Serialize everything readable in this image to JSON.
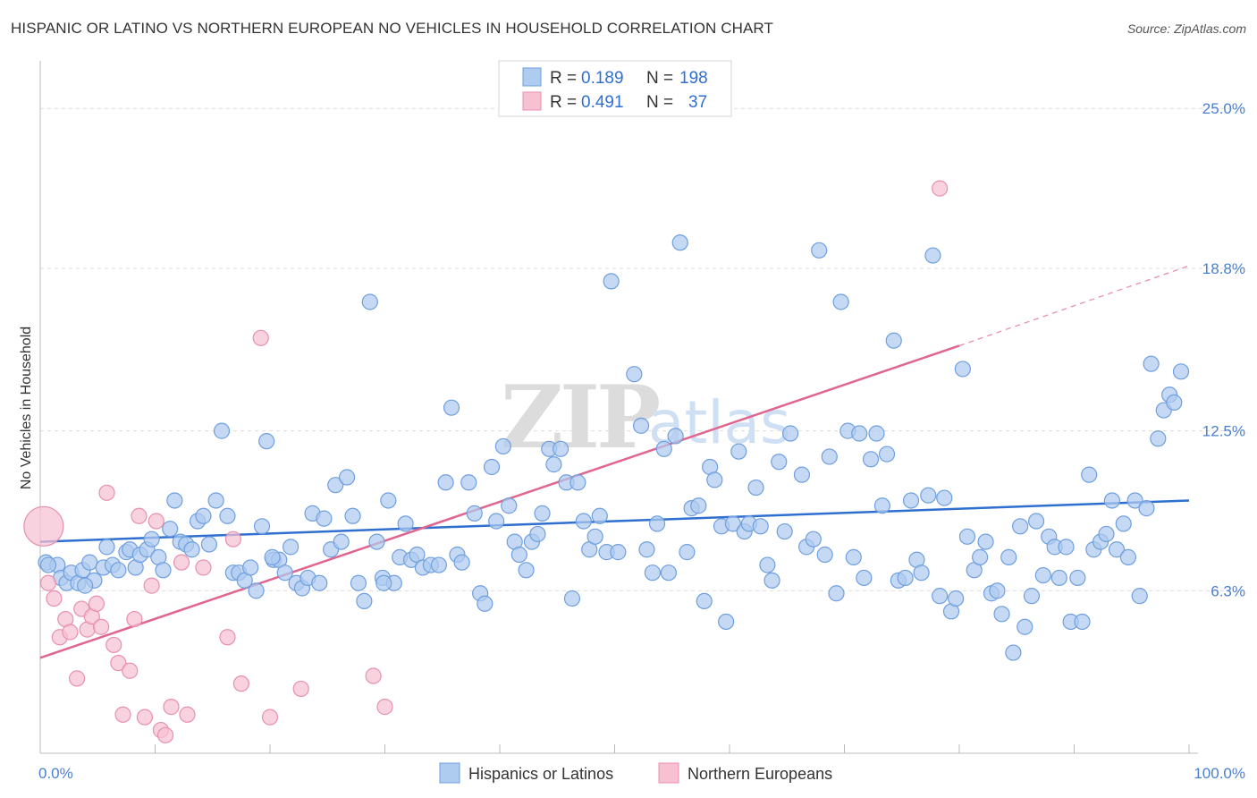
{
  "title": "HISPANIC OR LATINO VS NORTHERN EUROPEAN NO VEHICLES IN HOUSEHOLD CORRELATION CHART",
  "source": "Source: ZipAtlas.com",
  "watermark": "ZIPatlas",
  "colors": {
    "blue_fill": "#aecbf0",
    "blue_stroke": "#6f9fdf",
    "blue_line": "#2f6fd0",
    "pink_fill": "#f7c1d2",
    "pink_stroke": "#e890ad",
    "pink_line": "#e0658f",
    "tick_text": "#4a7fd1",
    "grid": "#dddddd"
  },
  "legend": {
    "rows": [
      {
        "r_label": "R =",
        "r_value": "0.189",
        "n_label": "N =",
        "n_value": "198"
      },
      {
        "r_label": "R =",
        "r_value": "0.491",
        "n_label": "N =",
        "n_value": "37"
      }
    ]
  },
  "chart_data": {
    "type": "scatter",
    "title": "HISPANIC OR LATINO VS NORTHERN EUROPEAN NO VEHICLES IN HOUSEHOLD CORRELATION CHART",
    "xlabel": "",
    "ylabel": "No Vehicles in Household",
    "xlim": [
      0,
      100
    ],
    "ylim": [
      0,
      26.5
    ],
    "x_tick_labels": [
      "0.0%",
      "100.0%"
    ],
    "y_ticks": [
      6.3,
      12.5,
      18.8,
      25.0
    ],
    "y_tick_labels": [
      "6.3%",
      "12.5%",
      "18.8%",
      "25.0%"
    ],
    "grid": "horizontal dashed",
    "legend_placement": "top-center",
    "series": [
      {
        "name": "Hispanics or Latinos",
        "r": 0.189,
        "n": 198,
        "trend": {
          "x0": 0,
          "y0": 8.2,
          "x1": 100,
          "y1": 9.8
        },
        "points": [
          [
            0.5,
            7.4
          ],
          [
            1.5,
            7.3
          ],
          [
            1.8,
            6.8
          ],
          [
            2.3,
            6.6
          ],
          [
            2.7,
            7.0
          ],
          [
            3.3,
            6.6
          ],
          [
            3.7,
            7.1
          ],
          [
            4.3,
            7.4
          ],
          [
            4.7,
            6.7
          ],
          [
            5.5,
            7.2
          ],
          [
            5.8,
            8.0
          ],
          [
            6.3,
            7.3
          ],
          [
            6.8,
            7.1
          ],
          [
            7.5,
            7.8
          ],
          [
            7.8,
            7.9
          ],
          [
            8.3,
            7.2
          ],
          [
            8.7,
            7.7
          ],
          [
            9.3,
            7.9
          ],
          [
            9.7,
            8.3
          ],
          [
            10.3,
            7.6
          ],
          [
            10.7,
            7.1
          ],
          [
            11.3,
            8.7
          ],
          [
            11.7,
            9.8
          ],
          [
            12.2,
            8.2
          ],
          [
            12.7,
            8.1
          ],
          [
            13.2,
            7.9
          ],
          [
            13.7,
            9.0
          ],
          [
            14.2,
            9.2
          ],
          [
            14.7,
            8.1
          ],
          [
            15.3,
            9.8
          ],
          [
            15.8,
            12.5
          ],
          [
            16.3,
            9.2
          ],
          [
            16.8,
            7.0
          ],
          [
            17.3,
            7.0
          ],
          [
            17.8,
            6.7
          ],
          [
            18.3,
            7.2
          ],
          [
            18.8,
            6.3
          ],
          [
            19.3,
            8.8
          ],
          [
            19.7,
            12.1
          ],
          [
            20.3,
            7.5
          ],
          [
            20.8,
            7.5
          ],
          [
            21.3,
            7.0
          ],
          [
            21.8,
            8.0
          ],
          [
            22.3,
            6.6
          ],
          [
            22.8,
            6.4
          ],
          [
            23.3,
            6.8
          ],
          [
            23.7,
            9.3
          ],
          [
            24.3,
            6.6
          ],
          [
            24.7,
            9.1
          ],
          [
            25.3,
            7.9
          ],
          [
            25.7,
            10.4
          ],
          [
            26.2,
            8.2
          ],
          [
            26.7,
            10.7
          ],
          [
            27.2,
            9.2
          ],
          [
            27.7,
            6.6
          ],
          [
            28.2,
            5.9
          ],
          [
            28.7,
            17.5
          ],
          [
            29.3,
            8.2
          ],
          [
            29.8,
            6.8
          ],
          [
            30.3,
            9.8
          ],
          [
            30.8,
            6.6
          ],
          [
            31.3,
            7.6
          ],
          [
            31.8,
            8.9
          ],
          [
            32.3,
            7.5
          ],
          [
            32.8,
            7.7
          ],
          [
            33.3,
            7.2
          ],
          [
            34.0,
            7.3
          ],
          [
            34.7,
            7.3
          ],
          [
            35.3,
            10.5
          ],
          [
            35.8,
            13.4
          ],
          [
            36.3,
            7.7
          ],
          [
            36.7,
            7.4
          ],
          [
            37.3,
            10.5
          ],
          [
            37.8,
            9.3
          ],
          [
            38.3,
            6.2
          ],
          [
            38.7,
            5.8
          ],
          [
            39.3,
            11.1
          ],
          [
            39.7,
            9.0
          ],
          [
            40.3,
            11.9
          ],
          [
            40.8,
            9.6
          ],
          [
            41.3,
            8.2
          ],
          [
            41.7,
            7.7
          ],
          [
            42.3,
            7.1
          ],
          [
            42.8,
            8.2
          ],
          [
            43.3,
            8.5
          ],
          [
            43.7,
            9.3
          ],
          [
            44.3,
            11.8
          ],
          [
            44.7,
            11.2
          ],
          [
            45.3,
            11.8
          ],
          [
            45.8,
            10.5
          ],
          [
            46.3,
            6.0
          ],
          [
            46.8,
            10.5
          ],
          [
            47.3,
            9.0
          ],
          [
            47.8,
            7.9
          ],
          [
            48.3,
            8.4
          ],
          [
            48.7,
            9.2
          ],
          [
            49.3,
            7.8
          ],
          [
            49.7,
            18.3
          ],
          [
            50.3,
            7.8
          ],
          [
            51.7,
            14.7
          ],
          [
            52.3,
            12.7
          ],
          [
            52.8,
            7.9
          ],
          [
            53.3,
            7.0
          ],
          [
            53.7,
            8.9
          ],
          [
            54.3,
            11.8
          ],
          [
            54.7,
            7.0
          ],
          [
            55.3,
            12.3
          ],
          [
            55.7,
            19.8
          ],
          [
            56.3,
            7.8
          ],
          [
            56.7,
            9.5
          ],
          [
            57.3,
            9.6
          ],
          [
            57.8,
            5.9
          ],
          [
            58.3,
            11.1
          ],
          [
            58.7,
            10.6
          ],
          [
            59.3,
            8.8
          ],
          [
            59.7,
            5.1
          ],
          [
            60.3,
            8.9
          ],
          [
            60.8,
            11.7
          ],
          [
            61.3,
            8.6
          ],
          [
            61.7,
            8.9
          ],
          [
            62.3,
            10.3
          ],
          [
            62.7,
            8.8
          ],
          [
            63.3,
            7.3
          ],
          [
            63.7,
            6.7
          ],
          [
            64.3,
            11.3
          ],
          [
            64.8,
            8.6
          ],
          [
            65.3,
            12.4
          ],
          [
            66.3,
            10.8
          ],
          [
            66.7,
            8.0
          ],
          [
            67.3,
            8.3
          ],
          [
            67.8,
            19.5
          ],
          [
            68.3,
            7.7
          ],
          [
            68.7,
            11.5
          ],
          [
            69.3,
            6.2
          ],
          [
            69.7,
            17.5
          ],
          [
            70.3,
            12.5
          ],
          [
            70.8,
            7.6
          ],
          [
            71.3,
            12.4
          ],
          [
            71.7,
            6.8
          ],
          [
            72.3,
            11.4
          ],
          [
            72.8,
            12.4
          ],
          [
            73.3,
            9.6
          ],
          [
            73.7,
            11.6
          ],
          [
            74.3,
            16.0
          ],
          [
            74.7,
            6.7
          ],
          [
            75.3,
            6.8
          ],
          [
            75.8,
            9.8
          ],
          [
            76.3,
            7.5
          ],
          [
            76.7,
            7.0
          ],
          [
            77.3,
            10.0
          ],
          [
            77.7,
            19.3
          ],
          [
            78.3,
            6.1
          ],
          [
            78.7,
            9.9
          ],
          [
            79.3,
            5.5
          ],
          [
            79.7,
            6.0
          ],
          [
            80.3,
            14.9
          ],
          [
            80.7,
            8.4
          ],
          [
            81.3,
            7.1
          ],
          [
            81.8,
            7.6
          ],
          [
            82.3,
            8.2
          ],
          [
            82.8,
            6.2
          ],
          [
            83.3,
            6.3
          ],
          [
            83.7,
            5.4
          ],
          [
            84.3,
            7.6
          ],
          [
            84.7,
            3.9
          ],
          [
            85.3,
            8.8
          ],
          [
            85.7,
            4.9
          ],
          [
            86.3,
            6.1
          ],
          [
            86.7,
            9.0
          ],
          [
            87.3,
            6.9
          ],
          [
            87.8,
            8.4
          ],
          [
            88.3,
            8.0
          ],
          [
            88.7,
            6.8
          ],
          [
            89.3,
            8.0
          ],
          [
            89.7,
            5.1
          ],
          [
            90.3,
            6.8
          ],
          [
            90.7,
            5.1
          ],
          [
            91.3,
            10.8
          ],
          [
            91.7,
            7.9
          ],
          [
            92.3,
            8.2
          ],
          [
            92.8,
            8.5
          ],
          [
            93.3,
            9.8
          ],
          [
            93.7,
            7.9
          ],
          [
            94.3,
            8.9
          ],
          [
            94.7,
            7.6
          ],
          [
            95.3,
            9.8
          ],
          [
            95.7,
            6.1
          ],
          [
            96.3,
            9.5
          ],
          [
            96.7,
            15.1
          ],
          [
            97.3,
            12.2
          ],
          [
            97.8,
            13.3
          ],
          [
            98.3,
            13.9
          ],
          [
            98.7,
            13.6
          ],
          [
            99.3,
            14.8
          ],
          [
            0.7,
            7.3
          ],
          [
            3.9,
            6.5
          ],
          [
            20.2,
            7.6
          ],
          [
            29.9,
            6.6
          ]
        ]
      },
      {
        "name": "Northern Europeans",
        "r": 0.491,
        "n": 37,
        "trend": {
          "x0": 0,
          "y0": 3.7,
          "x1": 80,
          "y1": 15.8
        },
        "trend_dashed_extension": {
          "x0": 80,
          "y0": 15.8,
          "x1": 100,
          "y1": 18.9
        },
        "points": [
          [
            0.3,
            8.8
          ],
          [
            0.7,
            6.6
          ],
          [
            1.2,
            6.0
          ],
          [
            1.7,
            4.5
          ],
          [
            2.2,
            5.2
          ],
          [
            2.6,
            4.7
          ],
          [
            3.2,
            2.9
          ],
          [
            3.6,
            5.6
          ],
          [
            4.1,
            4.8
          ],
          [
            4.5,
            5.3
          ],
          [
            4.9,
            5.8
          ],
          [
            5.3,
            4.9
          ],
          [
            5.8,
            10.1
          ],
          [
            6.4,
            4.2
          ],
          [
            6.8,
            3.5
          ],
          [
            7.2,
            1.5
          ],
          [
            7.8,
            3.2
          ],
          [
            8.2,
            5.2
          ],
          [
            8.6,
            9.2
          ],
          [
            9.1,
            1.4
          ],
          [
            9.7,
            6.5
          ],
          [
            10.1,
            9.0
          ],
          [
            10.5,
            0.9
          ],
          [
            10.9,
            0.7
          ],
          [
            11.4,
            1.8
          ],
          [
            12.3,
            7.4
          ],
          [
            12.8,
            1.5
          ],
          [
            14.2,
            7.2
          ],
          [
            16.3,
            4.5
          ],
          [
            16.8,
            8.3
          ],
          [
            17.5,
            2.7
          ],
          [
            19.2,
            16.1
          ],
          [
            20.0,
            1.4
          ],
          [
            22.7,
            2.5
          ],
          [
            29.0,
            3.0
          ],
          [
            30.0,
            1.8
          ],
          [
            78.3,
            21.9
          ]
        ]
      }
    ]
  }
}
